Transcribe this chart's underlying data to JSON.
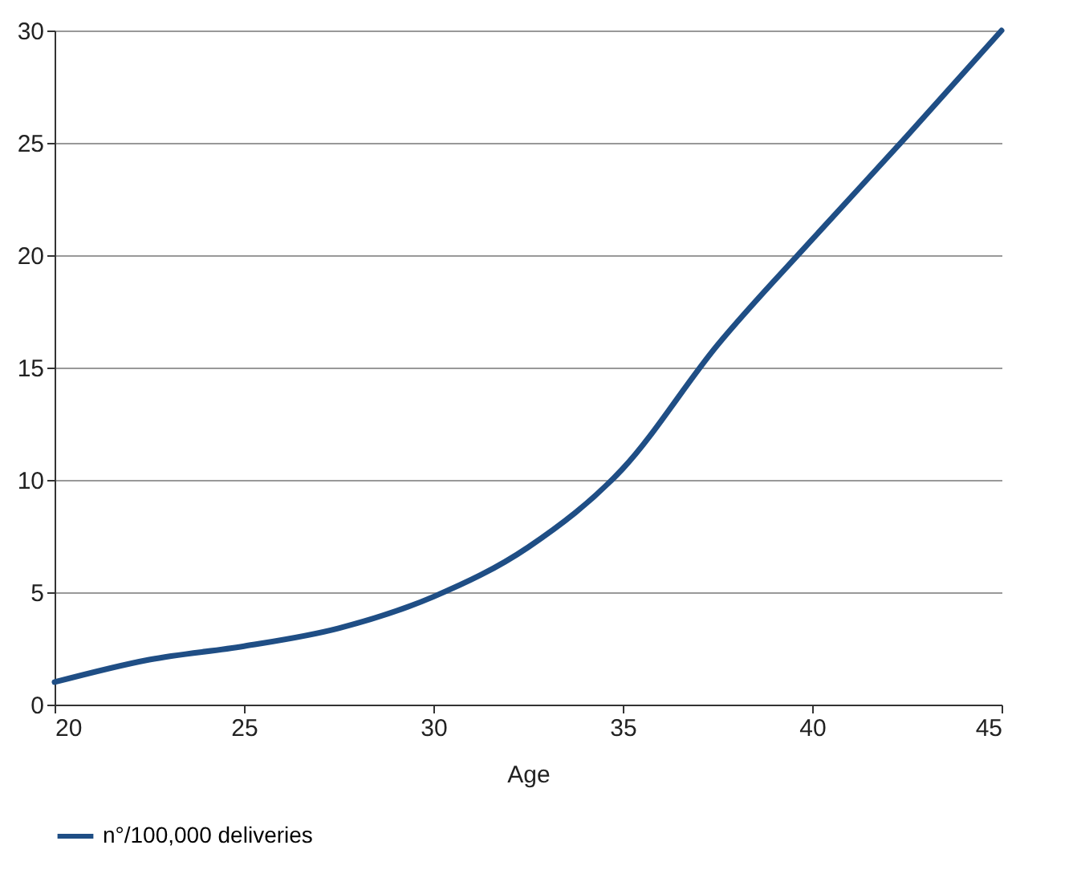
{
  "chart_data": {
    "type": "line",
    "xlabel": "Age",
    "x": [
      20,
      22.5,
      25,
      27.5,
      30,
      32.5,
      35,
      37.5,
      40,
      42.5,
      45
    ],
    "series": [
      {
        "name": "n°/100,000 deliveries",
        "color": "#1f4e85",
        "values": [
          1,
          2,
          2.6,
          3.4,
          4.8,
          7,
          10.5,
          16,
          20.7,
          25.3,
          30
        ]
      }
    ],
    "xlim": [
      20,
      45
    ],
    "xticks": [
      20,
      25,
      30,
      35,
      40,
      45
    ],
    "ylim": [
      0,
      30
    ],
    "yticks": [
      0,
      5,
      10,
      15,
      20,
      25,
      30
    ],
    "grid": "y",
    "legend": "bottom",
    "marker": "none",
    "line_style": "solid"
  }
}
